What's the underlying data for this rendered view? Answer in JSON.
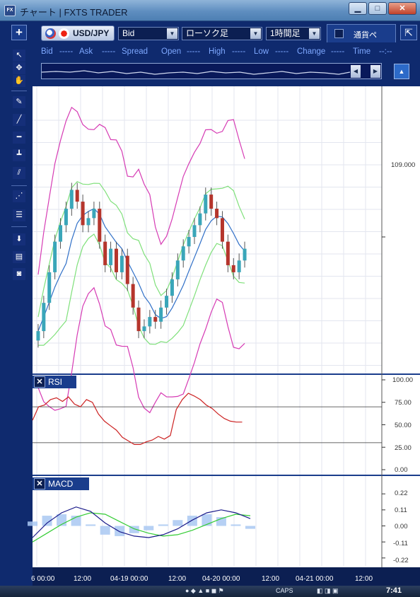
{
  "window": {
    "title": "チャート | FXTS TRADER",
    "app_icon": "FX",
    "buttons": {
      "minimize": "▁",
      "maximize": "□",
      "close": "✕"
    }
  },
  "toolbar": {
    "add_label": "+",
    "pair": "USD/JPY",
    "price_type": "Bid",
    "chart_type": "ローソク足",
    "timeframe": "1時間足",
    "currency_tab": "通貨ペ",
    "resize_label": "⇱"
  },
  "quote": {
    "bid_label": "Bid",
    "bid_value": "-----",
    "ask_label": "Ask",
    "ask_value": "-----",
    "spread_label": "Spread",
    "open_label": "Open",
    "open_value": "-----",
    "high_label": "High",
    "high_value": "-----",
    "low_label": "Low",
    "low_value": "-----",
    "change_label": "Change",
    "change_value": "-----",
    "time_label": "Time",
    "time_value": "--:--"
  },
  "icons": {
    "pointer": "pointer-icon",
    "crosshair": "crosshair-icon",
    "hand": "hand-icon",
    "pen": "pen-icon",
    "trendline": "trendline-icon",
    "hline": "horizontal-line-icon",
    "vline": "vertical-line-icon",
    "channel": "channel-icon",
    "fan": "fan-icon",
    "fibo": "fibonacci-icon",
    "download": "download-icon",
    "list": "list-icon",
    "camera": "camera-icon"
  },
  "panels": {
    "rsi_label": "RSI",
    "macd_label": "MACD",
    "close_label": "✕"
  },
  "yaxis": {
    "price_label": "109.000",
    "rsi_ticks": [
      "100.00",
      "75.00",
      "50.00",
      "25.00",
      "0.00"
    ],
    "macd_ticks": [
      "0.22",
      "0.11",
      "0.00",
      "-0.11",
      "-0.22"
    ]
  },
  "xaxis": {
    "labels": [
      "6 00:00",
      "12:00",
      "04-19 00:00",
      "12:00",
      "04-20 00:00",
      "12:00",
      "04-21 00:00",
      "12:00"
    ]
  },
  "taskbar": {
    "caps": "CAPS",
    "time": "7:41"
  },
  "colors": {
    "bull": "#3aa6b9",
    "bear": "#b5352c",
    "bollinger_outer": "#d63bb4",
    "bollinger_inner": "#7fe07a",
    "moving_average": "#2f6fc7",
    "rsi": "#cc2222",
    "macd": "#1a1a8a",
    "signal": "#33cc33",
    "histogram": "#a9c8f2"
  },
  "chart_data": [
    {
      "type": "candlestick",
      "title": "",
      "pair": "USD/JPY",
      "timeframe": "1時間足",
      "x_labels": [
        "6 00:00",
        "12:00",
        "04-19 00:00",
        "12:00",
        "04-20 00:00",
        "12:00",
        "04-21 00:00",
        "12:00"
      ],
      "ylim": [
        108.42,
        109.64
      ],
      "y_tick": 109.0,
      "series_close_path": [
        108.6,
        108.72,
        108.85,
        108.98,
        109.05,
        109.12,
        109.2,
        109.15,
        109.05,
        109.08,
        109.12,
        108.98,
        108.88,
        108.95,
        108.85,
        108.92,
        108.8,
        108.7,
        108.6,
        108.62,
        108.66,
        108.64,
        108.7,
        108.75,
        108.82,
        108.9,
        108.96,
        109.0,
        109.05,
        109.1,
        109.18,
        109.12,
        109.08,
        108.98,
        108.88,
        108.85,
        108.9,
        108.95
      ]
    },
    {
      "type": "line",
      "name": "RSI",
      "ylim": [
        0,
        100
      ],
      "ticks": [
        100,
        75,
        50,
        25,
        0
      ],
      "reference_lines": [
        70,
        30
      ],
      "values": [
        55,
        70,
        72,
        78,
        80,
        76,
        81,
        73,
        70,
        78,
        75,
        62,
        54,
        49,
        44,
        36,
        32,
        28,
        28,
        31,
        33,
        37,
        34,
        38,
        67,
        78,
        85,
        82,
        78,
        72,
        68,
        62,
        57,
        54,
        53,
        53
      ]
    },
    {
      "type": "line",
      "name": "MACD",
      "ylim": [
        -0.25,
        0.25
      ],
      "ticks": [
        0.22,
        0.11,
        0.0,
        -0.11,
        -0.22
      ],
      "macd": [
        -0.08,
        0.02,
        0.09,
        0.13,
        0.1,
        0.02,
        -0.04,
        -0.07,
        -0.08,
        -0.06,
        -0.02,
        0.04,
        0.09,
        0.11,
        0.09,
        0.05
      ],
      "signal": [
        -0.11,
        -0.05,
        0.01,
        0.06,
        0.09,
        0.08,
        0.03,
        -0.02,
        -0.05,
        -0.07,
        -0.06,
        -0.03,
        0.01,
        0.05,
        0.08,
        0.07
      ],
      "histogram": [
        0.03,
        0.07,
        0.08,
        0.07,
        0.01,
        -0.06,
        -0.07,
        -0.05,
        -0.03,
        0.01,
        0.04,
        0.07,
        0.08,
        0.06,
        0.01,
        -0.02
      ]
    }
  ]
}
